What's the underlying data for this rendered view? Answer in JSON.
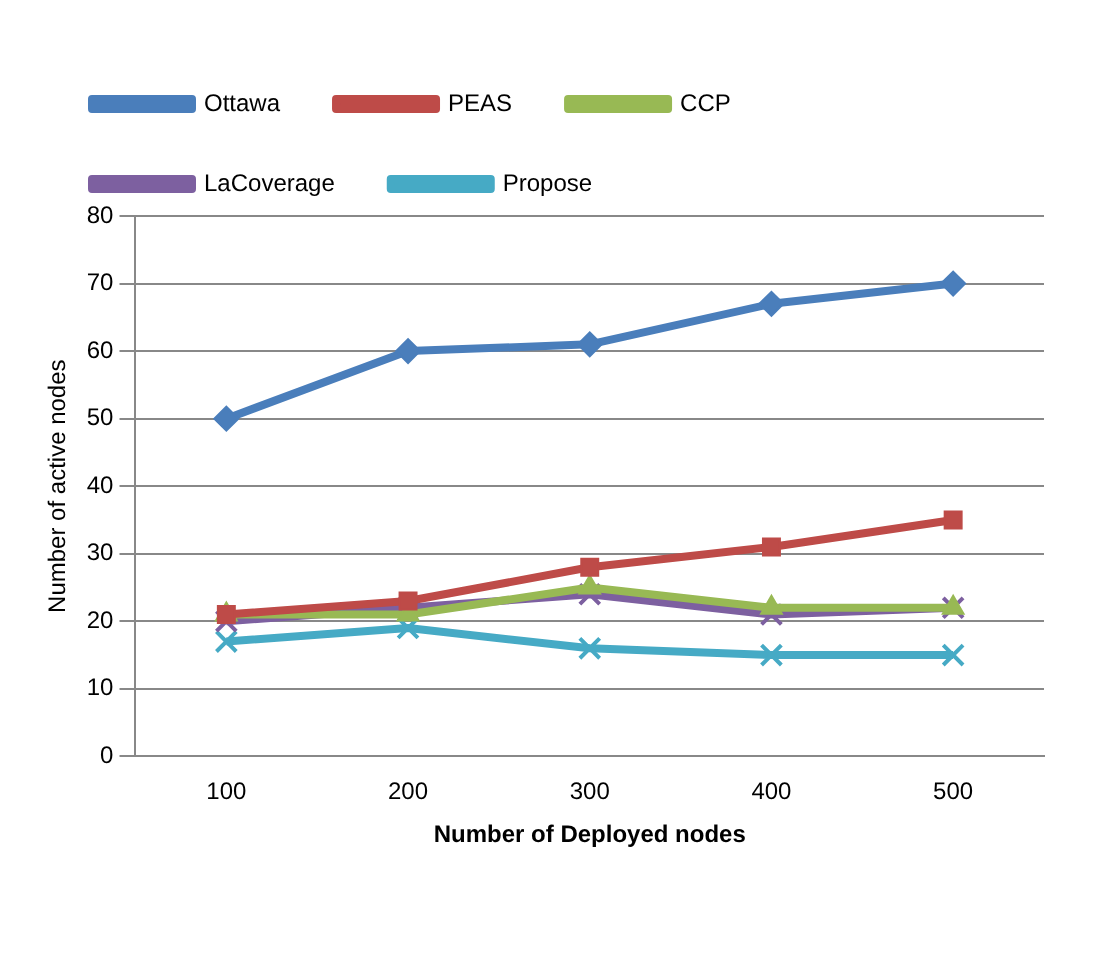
{
  "chart_data": {
    "type": "line",
    "xlabel": "Number of Deployed nodes",
    "ylabel": "Number of active nodes",
    "categories": [
      "100",
      "200",
      "300",
      "400",
      "500"
    ],
    "series": [
      {
        "name": "Ottawa",
        "color": "#4a7ebb",
        "marker": "diamond",
        "values": [
          50,
          60,
          61,
          67,
          70
        ]
      },
      {
        "name": "PEAS",
        "color": "#be4b48",
        "marker": "square",
        "values": [
          21,
          23,
          28,
          31,
          35
        ]
      },
      {
        "name": "CCP",
        "color": "#98b954",
        "marker": "triangle",
        "values": [
          21,
          21,
          25,
          22,
          22
        ]
      },
      {
        "name": "LaCoverage",
        "color": "#7d60a0",
        "marker": "cross",
        "values": [
          20,
          22,
          24,
          21,
          22
        ]
      },
      {
        "name": "Propose",
        "color": "#46aac5",
        "marker": "cross",
        "values": [
          17,
          19,
          16,
          15,
          15
        ]
      }
    ],
    "ylim": [
      0,
      80
    ],
    "yticks": [
      0,
      10,
      20,
      30,
      40,
      50,
      60,
      70,
      80
    ],
    "grid": "y",
    "legend": "top",
    "line_style": "solid"
  }
}
